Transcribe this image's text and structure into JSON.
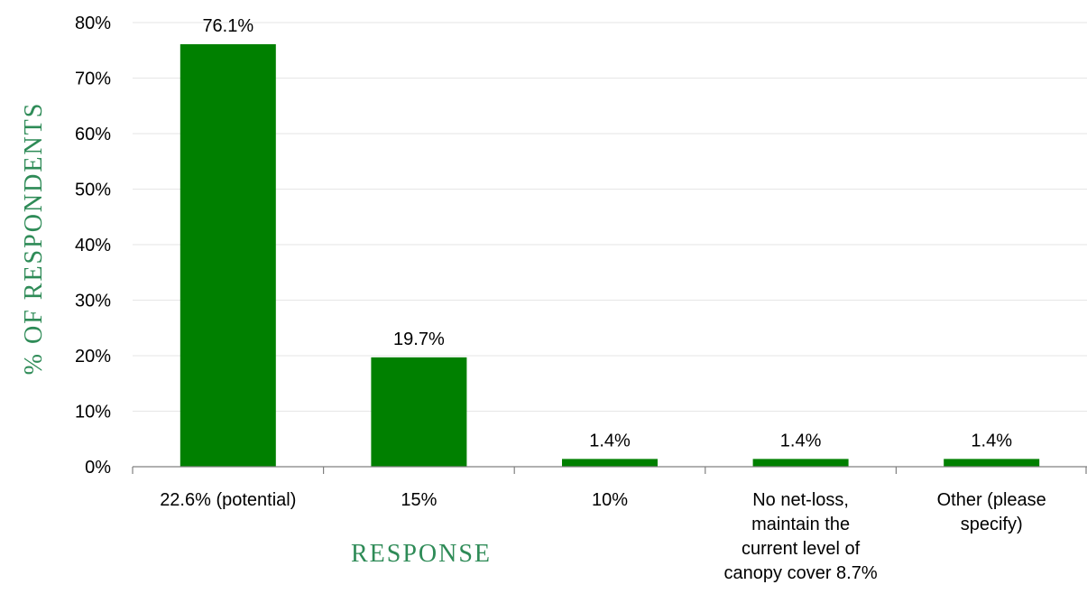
{
  "colors": {
    "bar": "#008000",
    "axis_title": "#2e8b57",
    "grid": "#e6e6e6",
    "axis": "#808080",
    "text": "#000000"
  },
  "chart_data": {
    "type": "bar",
    "categories": [
      [
        "22.6% (potential)"
      ],
      [
        "15%"
      ],
      [
        "10%"
      ],
      [
        "No net-loss,",
        "maintain the",
        "current level of",
        "canopy cover 8.7%"
      ],
      [
        "Other (please",
        "specify)"
      ]
    ],
    "values": [
      76.1,
      19.7,
      1.4,
      1.4,
      1.4
    ],
    "data_labels": [
      "76.1%",
      "19.7%",
      "1.4%",
      "1.4%",
      "1.4%"
    ],
    "xlabel": "RESPONSE",
    "ylabel": "% OF RESPONDENTS",
    "ylim": [
      0,
      80
    ],
    "yticks": [
      0,
      10,
      20,
      30,
      40,
      50,
      60,
      70,
      80
    ],
    "ytick_labels": [
      "0%",
      "10%",
      "20%",
      "30%",
      "40%",
      "50%",
      "60%",
      "70%",
      "80%"
    ],
    "grid": true,
    "legend": "none"
  }
}
